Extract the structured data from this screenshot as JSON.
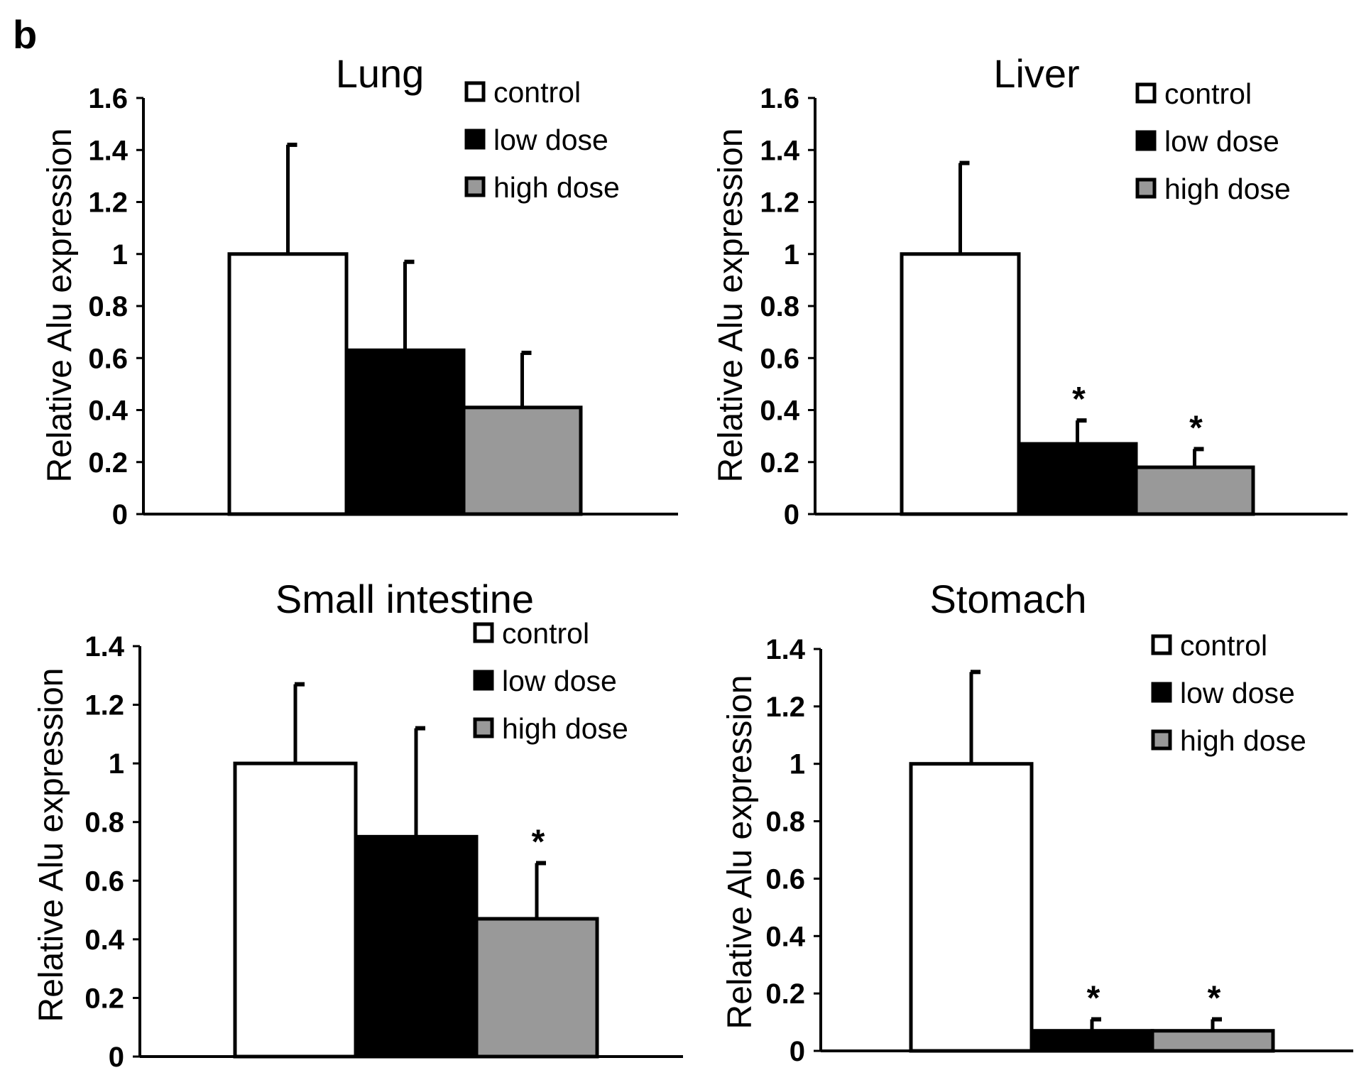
{
  "panel_label": "b",
  "chart_data": [
    {
      "type": "bar",
      "title": "Lung",
      "ylabel": "Relative Alu expression",
      "xlabel": "",
      "ylim": [
        0,
        1.6
      ],
      "yticks": [
        "0",
        "0.2",
        "0.4",
        "0.6",
        "0.8",
        "1",
        "1.2",
        "1.4",
        "1.6"
      ],
      "legend_position": "top-right",
      "series": [
        {
          "name": "control",
          "color": "#ffffff",
          "value": 1.0,
          "error": 0.42,
          "significant": false
        },
        {
          "name": "low dose",
          "color": "#000000",
          "value": 0.63,
          "error": 0.34,
          "significant": false
        },
        {
          "name": "high dose",
          "color": "#999999",
          "value": 0.41,
          "error": 0.21,
          "significant": false
        }
      ],
      "significance_marker": "*"
    },
    {
      "type": "bar",
      "title": "Liver",
      "ylabel": "Relative Alu expression",
      "xlabel": "",
      "ylim": [
        0,
        1.6
      ],
      "yticks": [
        "0",
        "0.2",
        "0.4",
        "0.6",
        "0.8",
        "1",
        "1.2",
        "1.4",
        "1.6"
      ],
      "legend_position": "top-right",
      "series": [
        {
          "name": "control",
          "color": "#ffffff",
          "value": 1.0,
          "error": 0.35,
          "significant": false
        },
        {
          "name": "low dose",
          "color": "#000000",
          "value": 0.27,
          "error": 0.09,
          "significant": true
        },
        {
          "name": "high dose",
          "color": "#999999",
          "value": 0.18,
          "error": 0.07,
          "significant": true
        }
      ],
      "significance_marker": "*"
    },
    {
      "type": "bar",
      "title": "Small intestine",
      "ylabel": "Relative Alu expression",
      "xlabel": "",
      "ylim": [
        0,
        1.4
      ],
      "yticks": [
        "0",
        "0.2",
        "0.4",
        "0.6",
        "0.8",
        "1",
        "1.2",
        "1.4"
      ],
      "legend_position": "top-right",
      "series": [
        {
          "name": "control",
          "color": "#ffffff",
          "value": 1.0,
          "error": 0.27,
          "significant": false
        },
        {
          "name": "low dose",
          "color": "#000000",
          "value": 0.75,
          "error": 0.37,
          "significant": false
        },
        {
          "name": "high dose",
          "color": "#999999",
          "value": 0.47,
          "error": 0.19,
          "significant": true
        }
      ],
      "significance_marker": "*"
    },
    {
      "type": "bar",
      "title": "Stomach",
      "ylabel": "Relative Alu expression",
      "xlabel": "",
      "ylim": [
        0,
        1.4
      ],
      "yticks": [
        "0",
        "0.2",
        "0.4",
        "0.6",
        "0.8",
        "1",
        "1.2",
        "1.4"
      ],
      "legend_position": "top-right",
      "series": [
        {
          "name": "control",
          "color": "#ffffff",
          "value": 1.0,
          "error": 0.32,
          "significant": false
        },
        {
          "name": "low dose",
          "color": "#000000",
          "value": 0.07,
          "error": 0.04,
          "significant": true
        },
        {
          "name": "high dose",
          "color": "#999999",
          "value": 0.07,
          "error": 0.04,
          "significant": true
        }
      ],
      "significance_marker": "*"
    }
  ]
}
